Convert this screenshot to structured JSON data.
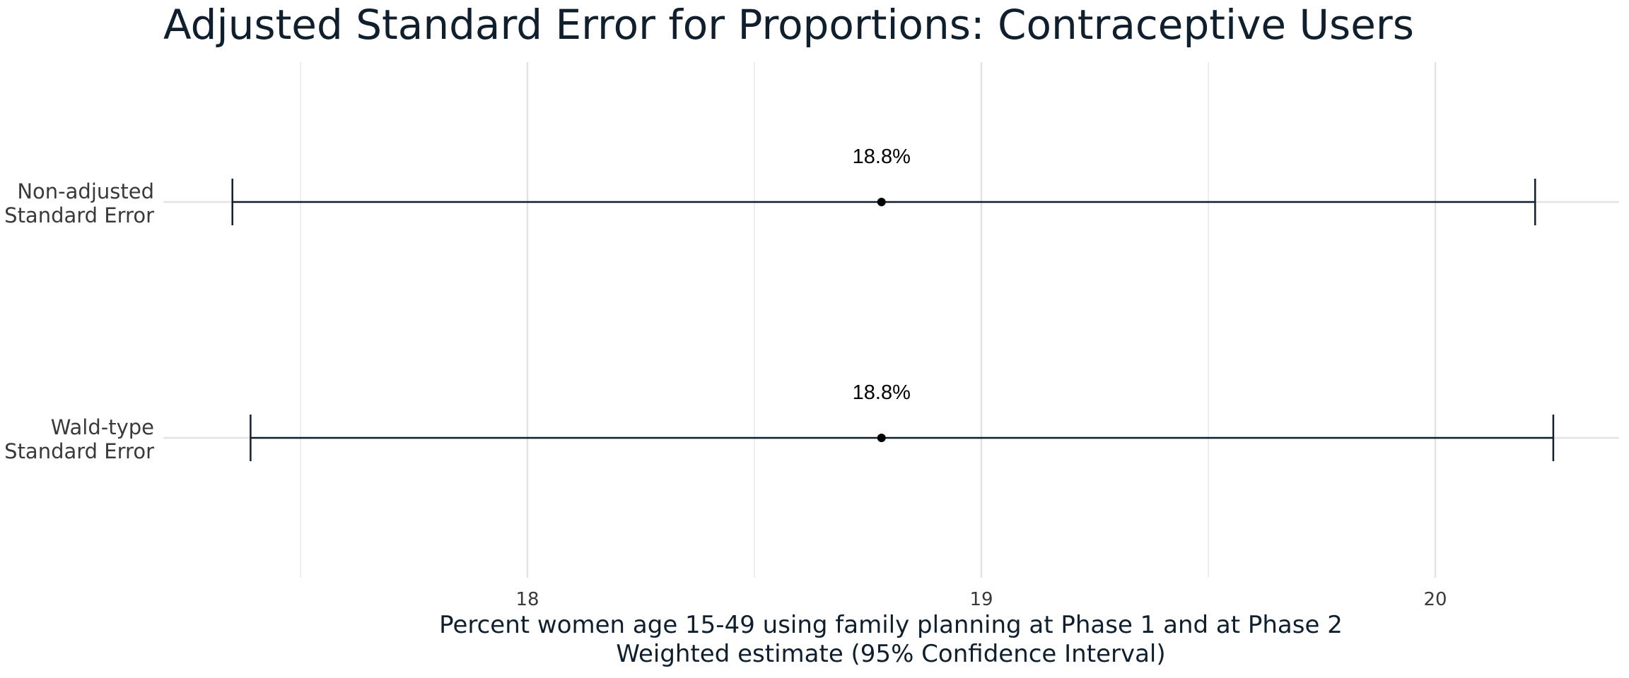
{
  "chart_data": {
    "type": "errorbar",
    "title": "Adjusted Standard Error for Proportions: Contraceptive Users",
    "xlabel_line1": "Percent women age 15-49 using family planning at Phase 1 and at Phase 2",
    "xlabel_line2": "Weighted estimate (95% Confidence Interval)",
    "xlim": [
      17.2,
      20.4
    ],
    "x_ticks": [
      18,
      19,
      20
    ],
    "x_tick_labels": [
      "18",
      "19",
      "20"
    ],
    "x_minor_ticks": [
      17.5,
      18.5,
      19.5
    ],
    "grid": true,
    "series": [
      {
        "label_line1": "Non-adjusted",
        "label_line2": "Standard Error",
        "estimate": 18.78,
        "lower": 17.35,
        "upper": 20.22,
        "data_label": "18.8%"
      },
      {
        "label_line1": "Wald-type",
        "label_line2": "Standard Error",
        "estimate": 18.78,
        "lower": 17.39,
        "upper": 20.26,
        "data_label": "18.8%"
      }
    ],
    "colors": {
      "bar": "#0f1f2e",
      "point": "#000000",
      "grid": "#e3e3e3"
    }
  }
}
